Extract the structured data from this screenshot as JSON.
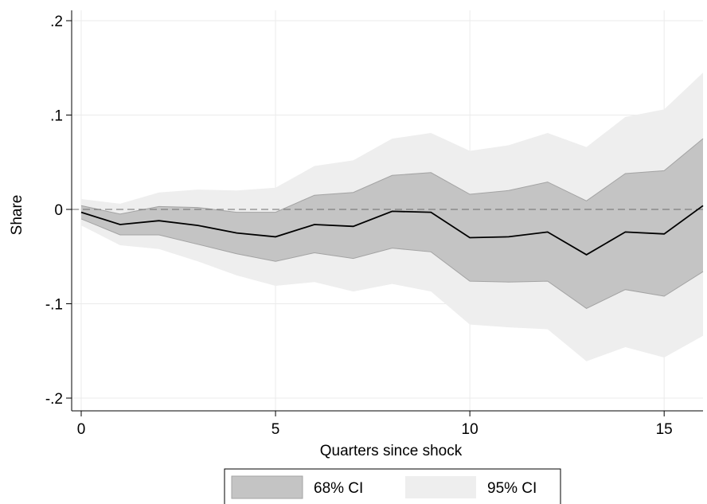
{
  "chart_data": {
    "type": "line",
    "title": "",
    "xlabel": "Quarters since shock",
    "ylabel": "Share",
    "xlim": [
      0,
      16
    ],
    "ylim": [
      -0.21,
      0.21
    ],
    "xticks": [
      0,
      5,
      10,
      15
    ],
    "xtick_labels": [
      "0",
      "5",
      "10",
      "15"
    ],
    "yticks": [
      0.2,
      0.1,
      0,
      -0.1,
      -0.2
    ],
    "ytick_labels": [
      ".2",
      ".1",
      "0",
      "-.1",
      "-.2"
    ],
    "grid": true,
    "reference_line_y": 0,
    "legend_position": "bottom",
    "x": [
      0,
      1,
      2,
      3,
      4,
      5,
      6,
      7,
      8,
      9,
      10,
      11,
      12,
      13,
      14,
      15,
      16
    ],
    "estimate": [
      -0.003,
      -0.016,
      -0.012,
      -0.017,
      -0.025,
      -0.029,
      -0.016,
      -0.018,
      -0.002,
      -0.003,
      -0.03,
      -0.029,
      -0.024,
      -0.048,
      -0.024,
      -0.026,
      0.004
    ],
    "ci68_upper": [
      0.004,
      -0.005,
      0.003,
      0.002,
      -0.003,
      -0.003,
      0.015,
      0.018,
      0.036,
      0.039,
      0.016,
      0.02,
      0.029,
      0.009,
      0.038,
      0.041,
      0.075
    ],
    "ci68_lower": [
      -0.01,
      -0.027,
      -0.027,
      -0.037,
      -0.047,
      -0.055,
      -0.046,
      -0.052,
      -0.041,
      -0.045,
      -0.076,
      -0.077,
      -0.076,
      -0.105,
      -0.085,
      -0.092,
      -0.066
    ],
    "ci95_upper": [
      0.011,
      0.006,
      0.018,
      0.021,
      0.02,
      0.023,
      0.046,
      0.052,
      0.075,
      0.081,
      0.062,
      0.068,
      0.081,
      0.066,
      0.098,
      0.106,
      0.145
    ],
    "ci95_lower": [
      -0.017,
      -0.038,
      -0.042,
      -0.055,
      -0.07,
      -0.081,
      -0.077,
      -0.087,
      -0.079,
      -0.087,
      -0.122,
      -0.125,
      -0.127,
      -0.161,
      -0.146,
      -0.157,
      -0.134
    ],
    "series": [
      {
        "name": "68% CI",
        "color": "#c4c4c4"
      },
      {
        "name": "95% CI",
        "color": "#eeeeee"
      }
    ]
  }
}
